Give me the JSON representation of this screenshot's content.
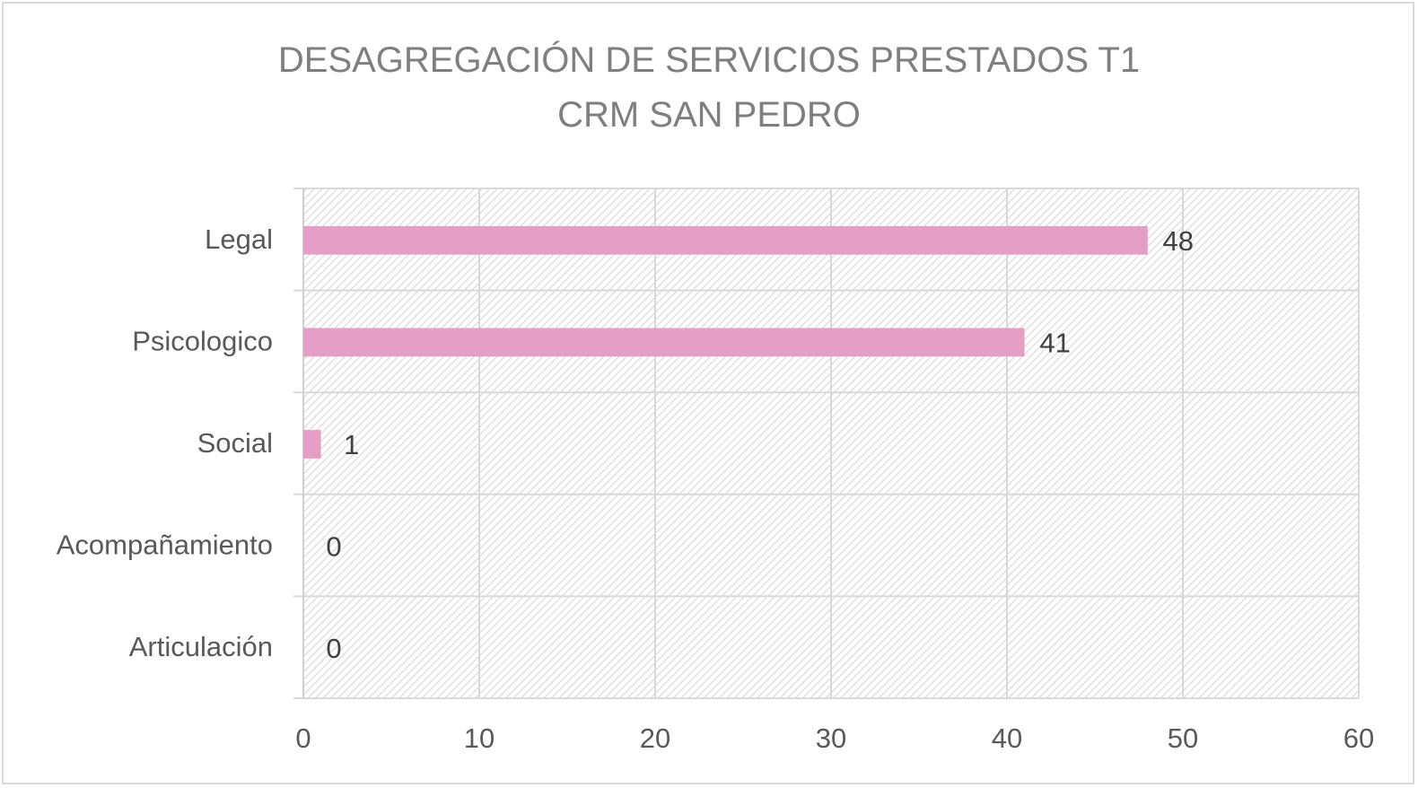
{
  "chart_data": {
    "type": "bar",
    "orientation": "horizontal",
    "title_lines": [
      "DESAGREGACIÓN DE SERVICIOS PRESTADOS T1",
      "CRM SAN PEDRO"
    ],
    "categories": [
      "Legal",
      "Psicologico",
      "Social",
      "Acompañamiento",
      "Articulación"
    ],
    "values": [
      48,
      41,
      1,
      0,
      0
    ],
    "xlim": [
      0,
      60
    ],
    "xticks": [
      0,
      10,
      20,
      30,
      40,
      50,
      60
    ],
    "grid": true,
    "legend": "none",
    "bar_color": "#e59ec6",
    "grid_color": "#d9d9d9",
    "plot_pattern": "diagonal-hatch"
  }
}
